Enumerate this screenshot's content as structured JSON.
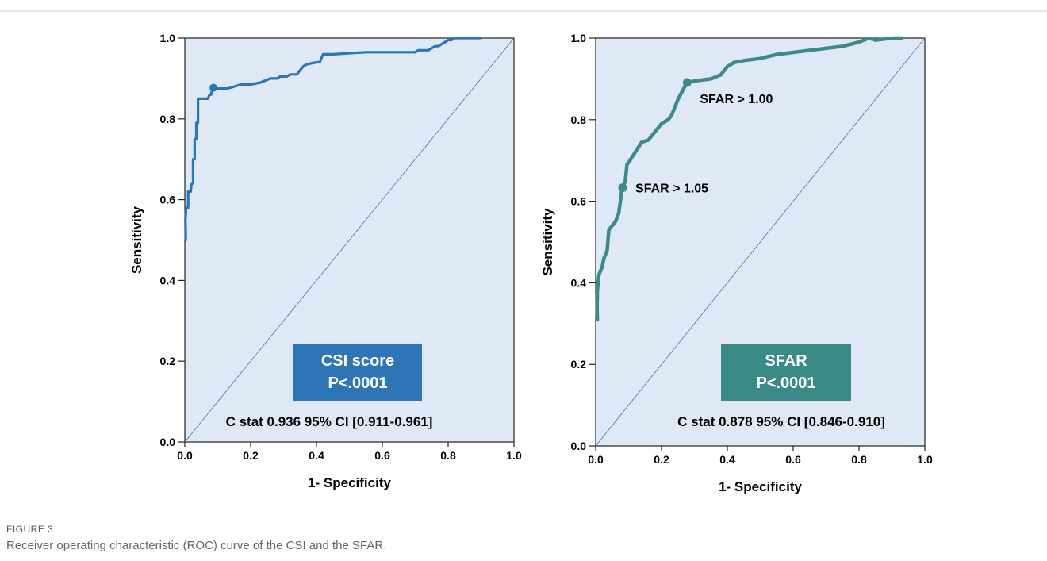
{
  "colors": {
    "plot_background": "#dfe9f5",
    "csi_curve": "#2e75b6",
    "sfar_curve": "#3d8a86",
    "csi_box": "#2e75b6",
    "sfar_box": "#3a8a88",
    "diagonal": "#4a6fa5"
  },
  "caption": {
    "label": "FIGURE 3",
    "text": "Receiver operating characteristic (ROC) curve of the CSI and the SFAR."
  },
  "chart_data": [
    {
      "type": "line",
      "xlabel": "1- Specificity",
      "ylabel": "Sensitivity",
      "xlim": [
        0,
        1
      ],
      "ylim": [
        0,
        1
      ],
      "x_ticks": [
        "0.0",
        "0.2",
        "0.4",
        "0.6",
        "0.8",
        "1.0"
      ],
      "y_ticks": [
        "0.0",
        "0.2",
        "0.4",
        "0.6",
        "0.8",
        "1.0"
      ],
      "grid": false,
      "box_lines": [
        "CSI score",
        "P<.0001"
      ],
      "stat_text": "C stat 0.936 95% CI [0.911-0.961]",
      "series": [
        {
          "points": [
            [
              0.003,
              0.5
            ],
            [
              0.002,
              0.55
            ],
            [
              0.004,
              0.58
            ],
            [
              0.01,
              0.58
            ],
            [
              0.01,
              0.62
            ],
            [
              0.018,
              0.62
            ],
            [
              0.02,
              0.64
            ],
            [
              0.025,
              0.64
            ],
            [
              0.025,
              0.7
            ],
            [
              0.03,
              0.7
            ],
            [
              0.03,
              0.75
            ],
            [
              0.035,
              0.75
            ],
            [
              0.035,
              0.79
            ],
            [
              0.04,
              0.79
            ],
            [
              0.04,
              0.85
            ],
            [
              0.07,
              0.85
            ],
            [
              0.075,
              0.86
            ],
            [
              0.08,
              0.86
            ],
            [
              0.085,
              0.88
            ],
            [
              0.095,
              0.875
            ],
            [
              0.13,
              0.875
            ],
            [
              0.15,
              0.88
            ],
            [
              0.17,
              0.885
            ],
            [
              0.2,
              0.885
            ],
            [
              0.23,
              0.89
            ],
            [
              0.26,
              0.9
            ],
            [
              0.28,
              0.9
            ],
            [
              0.29,
              0.905
            ],
            [
              0.31,
              0.905
            ],
            [
              0.32,
              0.91
            ],
            [
              0.34,
              0.91
            ],
            [
              0.35,
              0.92
            ],
            [
              0.36,
              0.93
            ],
            [
              0.37,
              0.935
            ],
            [
              0.4,
              0.94
            ],
            [
              0.41,
              0.94
            ],
            [
              0.42,
              0.96
            ],
            [
              0.45,
              0.96
            ],
            [
              0.55,
              0.965
            ],
            [
              0.7,
              0.965
            ],
            [
              0.71,
              0.97
            ],
            [
              0.74,
              0.97
            ],
            [
              0.76,
              0.98
            ],
            [
              0.77,
              0.98
            ],
            [
              0.79,
              0.99
            ],
            [
              0.8,
              0.995
            ],
            [
              0.81,
              0.995
            ],
            [
              0.82,
              1.0
            ],
            [
              0.9,
              1.0
            ]
          ]
        }
      ],
      "cutpoints": [
        {
          "x": 0.087,
          "y": 0.877
        }
      ]
    },
    {
      "type": "line",
      "xlabel": "1- Specificity",
      "ylabel": "Sensitivity",
      "xlim": [
        0,
        1
      ],
      "ylim": [
        0,
        1
      ],
      "x_ticks": [
        "0.0",
        "0.2",
        "0.4",
        "0.6",
        "0.8",
        "1.0"
      ],
      "y_ticks": [
        "0.0",
        "0.2",
        "0.4",
        "0.6",
        "0.8",
        "1.0"
      ],
      "grid": false,
      "box_lines": [
        "SFAR",
        "P<.0001"
      ],
      "stat_text": "C stat 0.878 95% CI [0.846-0.910]",
      "series": [
        {
          "points": [
            [
              0.005,
              0.31
            ],
            [
              0.004,
              0.34
            ],
            [
              0.005,
              0.38
            ],
            [
              0.01,
              0.42
            ],
            [
              0.015,
              0.43
            ],
            [
              0.02,
              0.44
            ],
            [
              0.025,
              0.46
            ],
            [
              0.03,
              0.47
            ],
            [
              0.035,
              0.48
            ],
            [
              0.04,
              0.53
            ],
            [
              0.045,
              0.535
            ],
            [
              0.05,
              0.54
            ],
            [
              0.06,
              0.55
            ],
            [
              0.07,
              0.57
            ],
            [
              0.075,
              0.6
            ],
            [
              0.08,
              0.63
            ],
            [
              0.09,
              0.65
            ],
            [
              0.095,
              0.69
            ],
            [
              0.1,
              0.695
            ],
            [
              0.12,
              0.72
            ],
            [
              0.14,
              0.745
            ],
            [
              0.16,
              0.75
            ],
            [
              0.18,
              0.77
            ],
            [
              0.2,
              0.79
            ],
            [
              0.22,
              0.8
            ],
            [
              0.23,
              0.81
            ],
            [
              0.25,
              0.85
            ],
            [
              0.27,
              0.88
            ],
            [
              0.28,
              0.89
            ],
            [
              0.3,
              0.895
            ],
            [
              0.35,
              0.9
            ],
            [
              0.38,
              0.91
            ],
            [
              0.4,
              0.93
            ],
            [
              0.42,
              0.94
            ],
            [
              0.45,
              0.945
            ],
            [
              0.5,
              0.95
            ],
            [
              0.55,
              0.96
            ],
            [
              0.6,
              0.965
            ],
            [
              0.65,
              0.97
            ],
            [
              0.7,
              0.975
            ],
            [
              0.75,
              0.98
            ],
            [
              0.8,
              0.99
            ],
            [
              0.83,
              1.0
            ],
            [
              0.85,
              0.995
            ],
            [
              0.9,
              1.0
            ],
            [
              0.93,
              1.0
            ]
          ]
        }
      ],
      "cutpoints": [
        {
          "x": 0.278,
          "y": 0.891,
          "label": "SFAR > 1.00"
        },
        {
          "x": 0.082,
          "y": 0.633,
          "label": "SFAR > 1.05"
        }
      ]
    }
  ]
}
